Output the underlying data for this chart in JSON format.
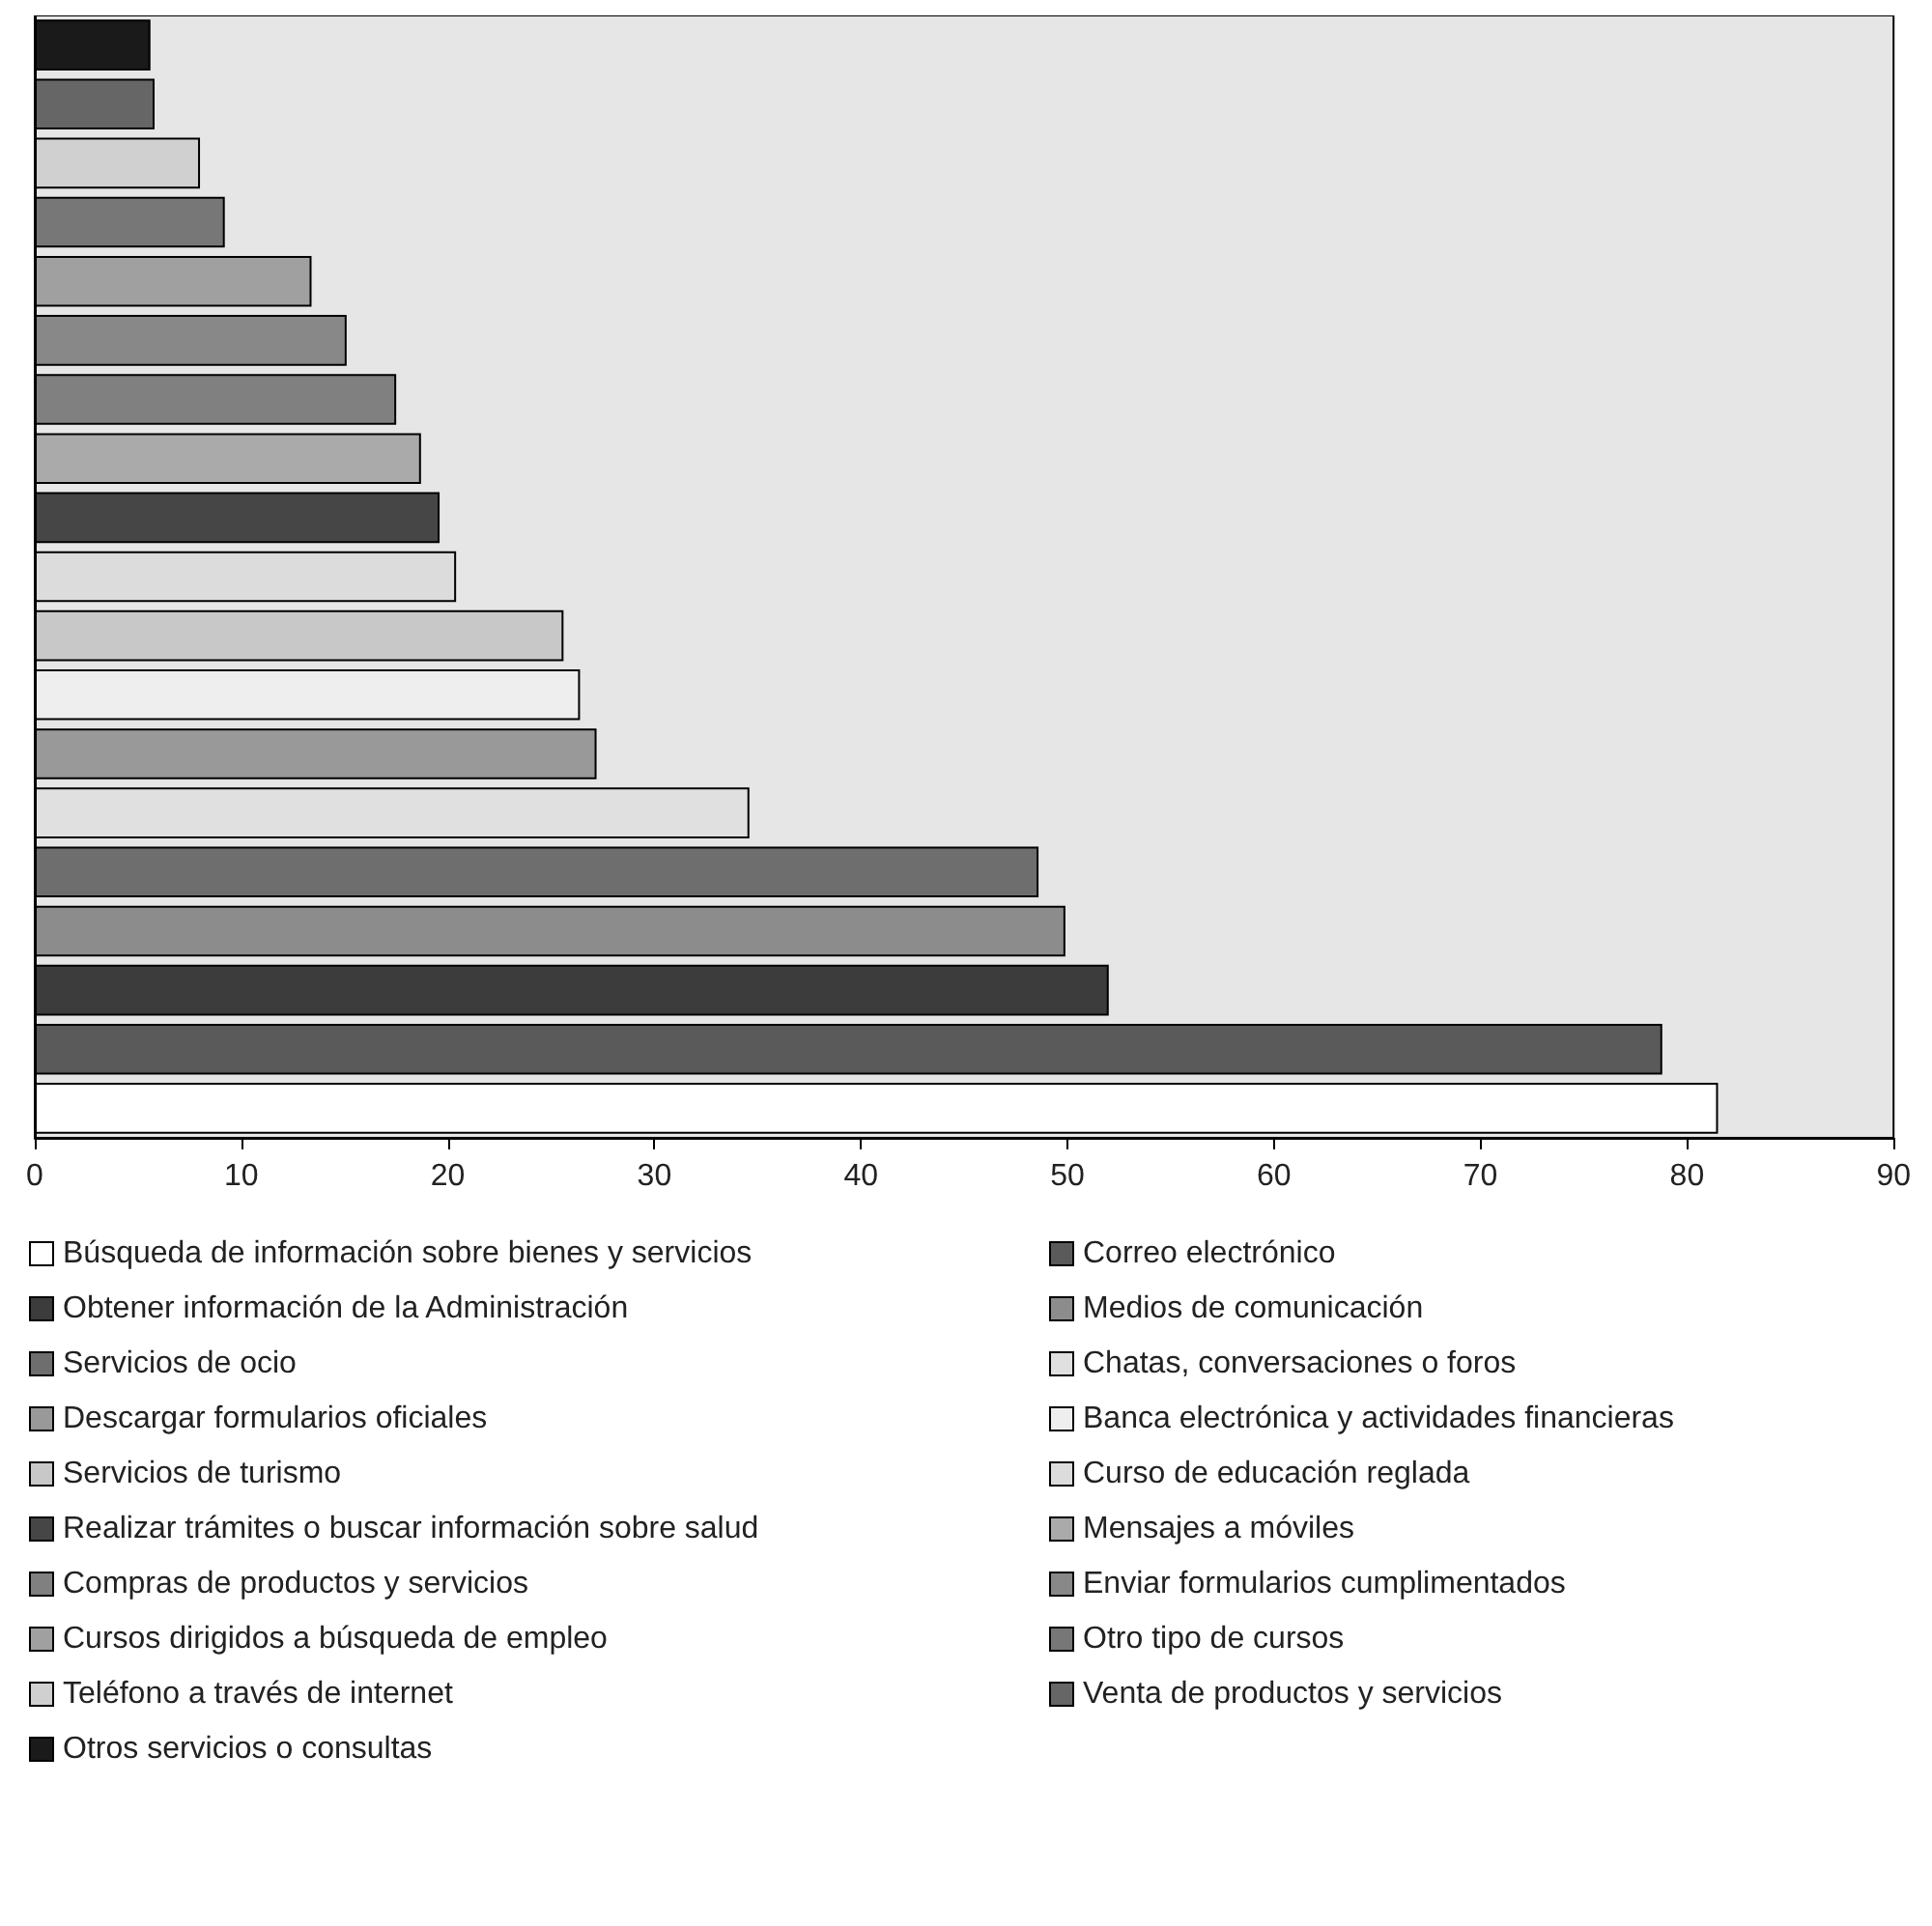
{
  "chart_data": {
    "type": "bar",
    "orientation": "horizontal",
    "categories": [
      null,
      null,
      null,
      null,
      null,
      null,
      null,
      null,
      null,
      null,
      null,
      null,
      null,
      null,
      null,
      null,
      null,
      null,
      null
    ],
    "series": [
      {
        "name": "Búsqueda de información sobre bienes y servicios",
        "color": "#ffffff",
        "values": [
          null,
          null,
          null,
          null,
          null,
          null,
          null,
          null,
          null,
          null,
          null,
          null,
          null,
          null,
          null,
          null,
          null,
          null,
          81.5
        ]
      },
      {
        "name": "Correo electrónico",
        "color": "#5a5a5a",
        "values": [
          null,
          null,
          null,
          null,
          null,
          null,
          null,
          null,
          null,
          null,
          null,
          null,
          null,
          null,
          null,
          null,
          null,
          78.8,
          null
        ]
      },
      {
        "name": "Obtener información de la Administración",
        "color": "#3c3c3c",
        "values": [
          null,
          null,
          null,
          null,
          null,
          null,
          null,
          null,
          null,
          null,
          null,
          null,
          null,
          null,
          null,
          null,
          52.0,
          null,
          null
        ]
      },
      {
        "name": "Medios de comunicación",
        "color": "#8c8c8c",
        "values": [
          null,
          null,
          null,
          null,
          null,
          null,
          null,
          null,
          null,
          null,
          null,
          null,
          null,
          null,
          null,
          49.9,
          null,
          null,
          null
        ]
      },
      {
        "name": "Servicios de ocio",
        "color": "#6e6e6e",
        "values": [
          null,
          null,
          null,
          null,
          null,
          null,
          null,
          null,
          null,
          null,
          null,
          null,
          null,
          null,
          48.6,
          null,
          null,
          null,
          null
        ]
      },
      {
        "name": "Chatas, conversaciones o foros",
        "color": "#e0e0e0",
        "values": [
          null,
          null,
          null,
          null,
          null,
          null,
          null,
          null,
          null,
          null,
          null,
          null,
          null,
          34.6,
          null,
          null,
          null,
          null,
          null
        ]
      },
      {
        "name": "Descargar formularios oficiales",
        "color": "#999999",
        "values": [
          null,
          null,
          null,
          null,
          null,
          null,
          null,
          null,
          null,
          null,
          null,
          null,
          27.2,
          null,
          null,
          null,
          null,
          null,
          null
        ]
      },
      {
        "name": "Banca electrónica y actividades financieras",
        "color": "#eeeeee",
        "values": [
          null,
          null,
          null,
          null,
          null,
          null,
          null,
          null,
          null,
          null,
          null,
          26.4,
          null,
          null,
          null,
          null,
          null,
          null,
          null
        ]
      },
      {
        "name": "Servicios de turismo",
        "color": "#c8c8c8",
        "values": [
          null,
          null,
          null,
          null,
          null,
          null,
          null,
          null,
          null,
          null,
          25.6,
          null,
          null,
          null,
          null,
          null,
          null,
          null,
          null
        ]
      },
      {
        "name": "Curso de educación reglada",
        "color": "#dcdcdc",
        "values": [
          null,
          null,
          null,
          null,
          null,
          null,
          null,
          null,
          null,
          20.4,
          null,
          null,
          null,
          null,
          null,
          null,
          null,
          null,
          null
        ]
      },
      {
        "name": "Realizar trámites o buscar información sobre salud",
        "color": "#464646",
        "values": [
          null,
          null,
          null,
          null,
          null,
          null,
          null,
          null,
          19.6,
          null,
          null,
          null,
          null,
          null,
          null,
          null,
          null,
          null,
          null
        ]
      },
      {
        "name": "Mensajes a móviles",
        "color": "#aaaaaa",
        "values": [
          null,
          null,
          null,
          null,
          null,
          null,
          null,
          18.7,
          null,
          null,
          null,
          null,
          null,
          null,
          null,
          null,
          null,
          null,
          null
        ]
      },
      {
        "name": "Compras de productos y servicios",
        "color": "#808080",
        "values": [
          null,
          null,
          null,
          null,
          null,
          null,
          17.5,
          null,
          null,
          null,
          null,
          null,
          null,
          null,
          null,
          null,
          null,
          null,
          null
        ]
      },
      {
        "name": "Enviar formularios cumplimentados",
        "color": "#888888",
        "values": [
          null,
          null,
          null,
          null,
          null,
          15.1,
          null,
          null,
          null,
          null,
          null,
          null,
          null,
          null,
          null,
          null,
          null,
          null,
          null
        ]
      },
      {
        "name": "Cursos dirigidos a búsqueda de empleo",
        "color": "#a0a0a0",
        "values": [
          null,
          null,
          null,
          null,
          13.4,
          null,
          null,
          null,
          null,
          null,
          null,
          null,
          null,
          null,
          null,
          null,
          null,
          null,
          null
        ]
      },
      {
        "name": "Otro tipo de cursos",
        "color": "#777777",
        "values": [
          null,
          null,
          null,
          9.2,
          null,
          null,
          null,
          null,
          null,
          null,
          null,
          null,
          null,
          null,
          null,
          null,
          null,
          null,
          null
        ]
      },
      {
        "name": "Teléfono a través de internet",
        "color": "#d0d0d0",
        "values": [
          null,
          null,
          8.0,
          null,
          null,
          null,
          null,
          null,
          null,
          null,
          null,
          null,
          null,
          null,
          null,
          null,
          null,
          null,
          null
        ]
      },
      {
        "name": "Venta de productos y servicios",
        "color": "#666666",
        "values": [
          null,
          5.8,
          null,
          null,
          null,
          null,
          null,
          null,
          null,
          null,
          null,
          null,
          null,
          null,
          null,
          null,
          null,
          null,
          null
        ]
      },
      {
        "name": "Otros servicios o consultas",
        "color": "#1a1a1a",
        "values": [
          5.6,
          null,
          null,
          null,
          null,
          null,
          null,
          null,
          null,
          null,
          null,
          null,
          null,
          null,
          null,
          null,
          null,
          null,
          null
        ]
      }
    ],
    "xlim": [
      0,
      90
    ],
    "xticks": [
      0,
      10,
      20,
      30,
      40,
      50,
      60,
      70,
      80,
      90
    ],
    "grid": false,
    "legend": "bottom",
    "tick_labels": "x"
  }
}
